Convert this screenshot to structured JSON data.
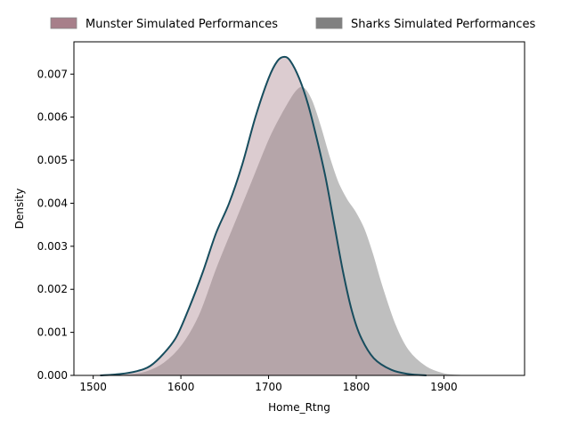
{
  "chart_data": {
    "type": "area",
    "xlabel": "Home_Rtng",
    "ylabel": "Density",
    "xlim": [
      1478,
      1992
    ],
    "ylim": [
      0,
      0.00775
    ],
    "xticks": [
      1500,
      1600,
      1700,
      1800,
      1900
    ],
    "xtick_labels": [
      "1500",
      "1600",
      "1700",
      "1800",
      "1900"
    ],
    "yticks": [
      0,
      0.001,
      0.002,
      0.003,
      0.004,
      0.005,
      0.006,
      0.007
    ],
    "ytick_labels": [
      "0.000",
      "0.001",
      "0.002",
      "0.003",
      "0.004",
      "0.005",
      "0.006",
      "0.007"
    ],
    "grid": false,
    "legend_position": "top-center-outside",
    "series": [
      {
        "name": "Munster Simulated Performances",
        "fill_color": "#a77f8a",
        "line_color": "#174d5e",
        "x": [
          1508,
          1530,
          1550,
          1565,
          1580,
          1595,
          1610,
          1625,
          1640,
          1655,
          1670,
          1685,
          1700,
          1710,
          1718,
          1725,
          1735,
          1745,
          1755,
          1765,
          1775,
          1785,
          1795,
          1805,
          1820,
          1840,
          1860,
          1880
        ],
        "y": [
          0.0,
          3e-05,
          0.0001,
          0.00022,
          0.0005,
          0.0009,
          0.0016,
          0.0024,
          0.0033,
          0.004,
          0.0049,
          0.006,
          0.0069,
          0.0073,
          0.0074,
          0.0073,
          0.0069,
          0.0063,
          0.0055,
          0.0046,
          0.0035,
          0.0024,
          0.0015,
          0.0009,
          0.0004,
          0.00013,
          3e-05,
          0.0
        ]
      },
      {
        "name": "Sharks Simulated Performances",
        "fill_color": "#808080",
        "line_color": "#ffffff",
        "x": [
          1515,
          1540,
          1560,
          1580,
          1600,
          1620,
          1640,
          1660,
          1680,
          1700,
          1715,
          1730,
          1740,
          1750,
          1760,
          1770,
          1780,
          1790,
          1800,
          1810,
          1820,
          1830,
          1845,
          1860,
          1880,
          1900,
          1920,
          1945
        ],
        "y": [
          0.0,
          3e-05,
          0.0001,
          0.0003,
          0.0007,
          0.0014,
          0.0025,
          0.0035,
          0.0045,
          0.0055,
          0.0061,
          0.0066,
          0.0067,
          0.0064,
          0.0058,
          0.0051,
          0.0045,
          0.0041,
          0.0038,
          0.0034,
          0.0028,
          0.0021,
          0.0012,
          0.0006,
          0.00022,
          6e-05,
          2e-05,
          0.0
        ]
      }
    ]
  }
}
